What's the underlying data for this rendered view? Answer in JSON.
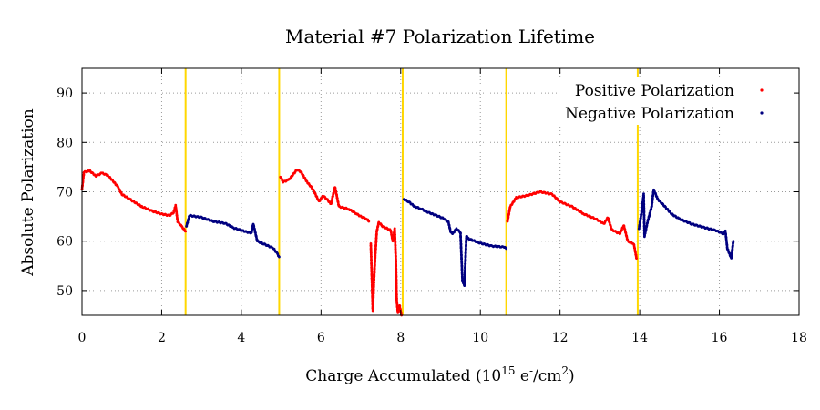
{
  "chart_data": {
    "type": "scatter",
    "title": "Material #7 Polarization Lifetime",
    "xlabel": {
      "prefix": "Charge Accumulated (10",
      "exp": "15",
      "mid": " e",
      "sup2": "-",
      "mid2": "/cm",
      "sup3": "2",
      "suffix": ")"
    },
    "ylabel": "Absolute Polarization",
    "xlim": [
      0,
      18
    ],
    "ylim": [
      45,
      95
    ],
    "xticks": [
      0,
      2,
      4,
      6,
      8,
      10,
      12,
      14,
      16,
      18
    ],
    "yticks": [
      50,
      60,
      70,
      80,
      90
    ],
    "grid": true,
    "legend_position": "top-right",
    "anneal_lines_x": [
      2.6,
      4.95,
      8.05,
      10.65,
      13.95
    ],
    "anneal_line_color": "#ffd700",
    "series": [
      {
        "name": "Positive Polarization",
        "color": "#ff0000",
        "segments": [
          [
            [
              0.0,
              70.5
            ],
            [
              0.05,
              74
            ],
            [
              0.2,
              74.2
            ],
            [
              0.35,
              73.2
            ],
            [
              0.5,
              73.8
            ],
            [
              0.65,
              73.3
            ],
            [
              0.8,
              72
            ],
            [
              0.9,
              71
            ],
            [
              1.0,
              69.5
            ],
            [
              1.2,
              68.5
            ],
            [
              1.5,
              67
            ],
            [
              1.8,
              66
            ],
            [
              2.0,
              65.5
            ],
            [
              2.2,
              65.2
            ],
            [
              2.3,
              65.8
            ],
            [
              2.35,
              67.2
            ],
            [
              2.4,
              64
            ],
            [
              2.5,
              63
            ],
            [
              2.6,
              62
            ]
          ],
          [
            [
              4.98,
              73
            ],
            [
              5.05,
              72
            ],
            [
              5.2,
              72.5
            ],
            [
              5.4,
              74.5
            ],
            [
              5.5,
              74
            ],
            [
              5.65,
              72
            ],
            [
              5.8,
              70.5
            ],
            [
              5.95,
              68
            ],
            [
              6.05,
              69.2
            ],
            [
              6.15,
              68.5
            ],
            [
              6.25,
              67.5
            ],
            [
              6.35,
              71
            ],
            [
              6.45,
              67
            ],
            [
              6.7,
              66.5
            ],
            [
              6.9,
              65.5
            ],
            [
              7.0,
              65
            ],
            [
              7.15,
              64.5
            ],
            [
              7.2,
              64
            ]
          ],
          [
            [
              7.25,
              59.5
            ],
            [
              7.3,
              46
            ],
            [
              7.33,
              52
            ],
            [
              7.36,
              57
            ],
            [
              7.4,
              62
            ],
            [
              7.45,
              63.8
            ],
            [
              7.55,
              63
            ],
            [
              7.65,
              62.6
            ],
            [
              7.75,
              62.2
            ],
            [
              7.8,
              60
            ],
            [
              7.85,
              62.5
            ],
            [
              7.88,
              56
            ],
            [
              7.9,
              48
            ],
            [
              7.93,
              45.5
            ],
            [
              7.97,
              47
            ],
            [
              8.02,
              45
            ]
          ],
          [
            [
              10.68,
              64
            ],
            [
              10.75,
              67
            ],
            [
              10.9,
              68.8
            ],
            [
              11.2,
              69.3
            ],
            [
              11.5,
              70
            ],
            [
              11.8,
              69.5
            ],
            [
              12.0,
              68
            ],
            [
              12.3,
              67
            ],
            [
              12.6,
              65.5
            ],
            [
              12.9,
              64.5
            ],
            [
              13.1,
              63.5
            ],
            [
              13.2,
              64.8
            ],
            [
              13.3,
              62.3
            ],
            [
              13.5,
              61.5
            ],
            [
              13.6,
              63.2
            ],
            [
              13.7,
              60
            ],
            [
              13.85,
              59.5
            ],
            [
              13.92,
              56.5
            ]
          ]
        ]
      },
      {
        "name": "Negative Polarization",
        "color": "#000080",
        "segments": [
          [
            [
              2.62,
              63
            ],
            [
              2.7,
              65.2
            ],
            [
              3.0,
              64.8
            ],
            [
              3.3,
              64
            ],
            [
              3.6,
              63.6
            ],
            [
              3.8,
              62.7
            ],
            [
              4.0,
              62.2
            ],
            [
              4.25,
              61.6
            ],
            [
              4.3,
              63.5
            ],
            [
              4.4,
              60
            ],
            [
              4.6,
              59.3
            ],
            [
              4.8,
              58.6
            ],
            [
              4.9,
              57.5
            ],
            [
              4.95,
              56.8
            ]
          ],
          [
            [
              8.08,
              68.5
            ],
            [
              8.2,
              68
            ],
            [
              8.35,
              67
            ],
            [
              8.5,
              66.6
            ],
            [
              8.7,
              65.8
            ],
            [
              8.9,
              65.2
            ],
            [
              9.1,
              64.5
            ],
            [
              9.2,
              63.8
            ],
            [
              9.25,
              62
            ],
            [
              9.3,
              61.5
            ],
            [
              9.4,
              62.5
            ],
            [
              9.5,
              61.8
            ],
            [
              9.55,
              52
            ],
            [
              9.6,
              51
            ],
            [
              9.65,
              61
            ],
            [
              9.7,
              60.5
            ],
            [
              9.8,
              60.2
            ],
            [
              10.0,
              59.6
            ],
            [
              10.3,
              59
            ],
            [
              10.6,
              58.8
            ],
            [
              10.65,
              58.5
            ]
          ],
          [
            [
              13.98,
              62.5
            ],
            [
              14.05,
              66
            ],
            [
              14.1,
              69.5
            ],
            [
              14.12,
              61
            ],
            [
              14.2,
              64
            ],
            [
              14.3,
              67
            ],
            [
              14.35,
              70.5
            ],
            [
              14.45,
              68.5
            ],
            [
              14.6,
              67.3
            ],
            [
              14.8,
              65.5
            ],
            [
              15.0,
              64.5
            ],
            [
              15.3,
              63.5
            ],
            [
              15.6,
              62.8
            ],
            [
              15.9,
              62.2
            ],
            [
              16.1,
              61.5
            ],
            [
              16.15,
              62
            ],
            [
              16.2,
              58.5
            ],
            [
              16.3,
              56.5
            ],
            [
              16.35,
              60
            ]
          ]
        ]
      }
    ]
  }
}
